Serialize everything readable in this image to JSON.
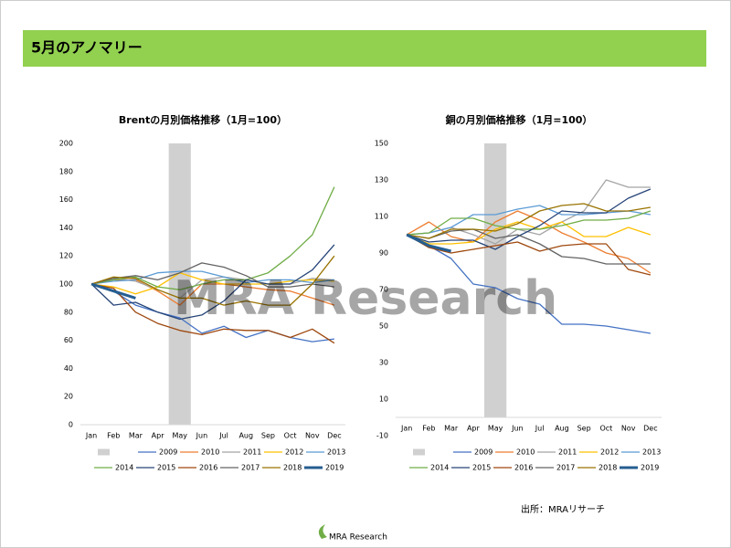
{
  "header": {
    "title": "5月のアノマリー"
  },
  "watermark": "MRA Research",
  "source": "出所：MRAリサーチ",
  "logo": "MRA Research",
  "chart_data": [
    {
      "type": "line",
      "title": "Brentの月別価格推移（1月=100）",
      "categories": [
        "Jan",
        "Feb",
        "Mar",
        "Apr",
        "May",
        "Jun",
        "Jul",
        "Aug",
        "Sep",
        "Oct",
        "Nov",
        "Dec"
      ],
      "highlight": "May",
      "highlight_color": "#d0d0d0",
      "ylim": [
        0,
        200
      ],
      "yticks": [
        0,
        20,
        40,
        60,
        80,
        100,
        120,
        140,
        160,
        180,
        200
      ],
      "series": [
        {
          "name": "2009",
          "color": "#4472c4",
          "values": [
            100,
            95,
            85,
            80,
            76,
            65,
            70,
            62,
            67,
            62,
            59,
            61
          ]
        },
        {
          "name": "2010",
          "color": "#ed7d31",
          "values": [
            100,
            103,
            103,
            95,
            85,
            100,
            100,
            98,
            96,
            95,
            90,
            85
          ]
        },
        {
          "name": "2011",
          "color": "#a5a5a5",
          "values": [
            100,
            104,
            102,
            96,
            90,
            103,
            105,
            103,
            100,
            100,
            104,
            103
          ]
        },
        {
          "name": "2012",
          "color": "#ffc000",
          "values": [
            100,
            98,
            93,
            98,
            108,
            103,
            100,
            100,
            100,
            102,
            103,
            102
          ]
        },
        {
          "name": "2013",
          "color": "#5b9bd5",
          "values": [
            100,
            102,
            103,
            108,
            109,
            109,
            105,
            101,
            103,
            103,
            101,
            103
          ]
        },
        {
          "name": "2014",
          "color": "#70ad47",
          "values": [
            100,
            103,
            105,
            98,
            96,
            100,
            103,
            103,
            108,
            120,
            135,
            169
          ]
        },
        {
          "name": "2015",
          "color": "#264478",
          "values": [
            100,
            85,
            87,
            80,
            75,
            78,
            88,
            103,
            100,
            100,
            110,
            128
          ]
        },
        {
          "name": "2016",
          "color": "#9e480e",
          "values": [
            100,
            97,
            80,
            72,
            67,
            64,
            68,
            67,
            67,
            62,
            68,
            58
          ]
        },
        {
          "name": "2017",
          "color": "#636363",
          "values": [
            100,
            104,
            106,
            103,
            108,
            115,
            112,
            106,
            98,
            98,
            100,
            98
          ]
        },
        {
          "name": "2018",
          "color": "#997300",
          "values": [
            100,
            105,
            104,
            96,
            90,
            90,
            85,
            88,
            85,
            85,
            100,
            120
          ]
        },
        {
          "name": "2019",
          "color": "#255e91",
          "line_width": 3,
          "values": [
            100,
            95,
            90,
            null,
            null,
            null,
            null,
            null,
            null,
            null,
            null,
            null
          ]
        }
      ]
    },
    {
      "type": "line",
      "title": "銅の月別価格推移（1月=100）",
      "categories": [
        "Jan",
        "Feb",
        "Mar",
        "Apr",
        "May",
        "Jun",
        "Jul",
        "Aug",
        "Sep",
        "Oct",
        "Nov",
        "Dec"
      ],
      "highlight": "May",
      "highlight_color": "#d0d0d0",
      "ylim": [
        -10,
        150
      ],
      "yticks": [
        -10,
        10,
        30,
        50,
        70,
        90,
        110,
        130,
        150
      ],
      "series": [
        {
          "name": "2009",
          "color": "#4472c4",
          "values": [
            100,
            94,
            87,
            73,
            71,
            65,
            62,
            51,
            51,
            50,
            48,
            46
          ]
        },
        {
          "name": "2010",
          "color": "#ed7d31",
          "values": [
            100,
            107,
            99,
            96,
            107,
            113,
            108,
            101,
            96,
            90,
            87,
            79
          ]
        },
        {
          "name": "2011",
          "color": "#a5a5a5",
          "values": [
            100,
            101,
            104,
            100,
            95,
            103,
            100,
            107,
            113,
            130,
            126,
            126
          ]
        },
        {
          "name": "2012",
          "color": "#ffc000",
          "values": [
            100,
            95,
            95,
            96,
            103,
            107,
            103,
            107,
            99,
            99,
            104,
            100
          ]
        },
        {
          "name": "2013",
          "color": "#5b9bd5",
          "values": [
            100,
            101,
            104,
            111,
            111,
            114,
            116,
            111,
            111,
            112,
            113,
            111
          ]
        },
        {
          "name": "2014",
          "color": "#70ad47",
          "values": [
            100,
            101,
            109,
            109,
            105,
            103,
            103,
            105,
            108,
            108,
            109,
            113
          ]
        },
        {
          "name": "2015",
          "color": "#264478",
          "values": [
            100,
            96,
            97,
            97,
            92,
            99,
            105,
            113,
            112,
            112,
            120,
            125
          ]
        },
        {
          "name": "2016",
          "color": "#9e480e",
          "values": [
            100,
            93,
            90,
            92,
            94,
            96,
            91,
            94,
            95,
            95,
            81,
            78
          ]
        },
        {
          "name": "2017",
          "color": "#636363",
          "values": [
            100,
            98,
            102,
            103,
            98,
            100,
            95,
            88,
            87,
            84,
            84,
            84
          ]
        },
        {
          "name": "2018",
          "color": "#997300",
          "values": [
            100,
            98,
            103,
            103,
            102,
            106,
            113,
            116,
            117,
            113,
            113,
            115
          ]
        },
        {
          "name": "2019",
          "color": "#255e91",
          "line_width": 3,
          "values": [
            100,
            94,
            91,
            null,
            null,
            null,
            null,
            null,
            null,
            null,
            null,
            null
          ]
        }
      ]
    }
  ]
}
